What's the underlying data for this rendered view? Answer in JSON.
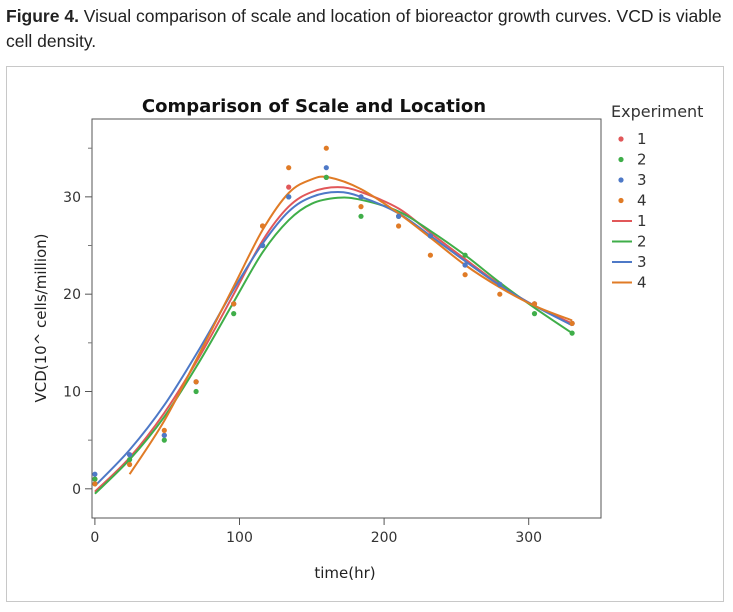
{
  "caption": {
    "label": "Figure 4.",
    "text": " Visual comparison of scale and location of bioreactor growth curves. VCD is viable cell density."
  },
  "chart_data": {
    "type": "scatter",
    "title": "Comparison of Scale and Location",
    "xlabel": "time(hr)",
    "ylabel": "VCD(10^ cells/million)",
    "xlim": [
      -2,
      350
    ],
    "ylim": [
      -3,
      38
    ],
    "xticks": [
      0,
      100,
      200,
      300
    ],
    "yticks": [
      0,
      10,
      20,
      30
    ],
    "legend": {
      "title": "Experiment",
      "position": "right",
      "point_entries": [
        "1",
        "2",
        "3",
        "4"
      ],
      "line_entries": [
        "1",
        "2",
        "3",
        "4"
      ]
    },
    "colors": {
      "1": "#e15759",
      "2": "#3fae49",
      "3": "#4e79c7",
      "4": "#e07b26"
    },
    "series": [
      {
        "name": "1",
        "points": [
          [
            0,
            1
          ],
          [
            24,
            3.5
          ],
          [
            48,
            5.5
          ],
          [
            70,
            11
          ],
          [
            96,
            19
          ],
          [
            116,
            27
          ],
          [
            134,
            31
          ],
          [
            160,
            32
          ],
          [
            184,
            30
          ],
          [
            210,
            28
          ],
          [
            232,
            26
          ],
          [
            256,
            23
          ],
          [
            280,
            21
          ],
          [
            304,
            19
          ],
          [
            330,
            17
          ]
        ],
        "fit": [
          [
            0,
            -0.3
          ],
          [
            24,
            3.2
          ],
          [
            48,
            7.8
          ],
          [
            72,
            13.5
          ],
          [
            96,
            20
          ],
          [
            116,
            25.5
          ],
          [
            134,
            29
          ],
          [
            150,
            30.5
          ],
          [
            168,
            31
          ],
          [
            184,
            30.5
          ],
          [
            210,
            28.8
          ],
          [
            232,
            26.3
          ],
          [
            256,
            23.6
          ],
          [
            280,
            21
          ],
          [
            304,
            18.8
          ],
          [
            330,
            17
          ]
        ]
      },
      {
        "name": "2",
        "points": [
          [
            0,
            1
          ],
          [
            24,
            3
          ],
          [
            48,
            5
          ],
          [
            70,
            10
          ],
          [
            96,
            18
          ],
          [
            116,
            25
          ],
          [
            134,
            30
          ],
          [
            160,
            32
          ],
          [
            184,
            28
          ],
          [
            210,
            28
          ],
          [
            232,
            26
          ],
          [
            256,
            24
          ],
          [
            280,
            21
          ],
          [
            304,
            18
          ],
          [
            330,
            16
          ]
        ],
        "fit": [
          [
            0,
            -0.5
          ],
          [
            24,
            3
          ],
          [
            48,
            7.4
          ],
          [
            72,
            13
          ],
          [
            96,
            19.2
          ],
          [
            116,
            24.3
          ],
          [
            134,
            27.6
          ],
          [
            150,
            29.3
          ],
          [
            168,
            29.9
          ],
          [
            184,
            29.7
          ],
          [
            210,
            28.5
          ],
          [
            232,
            26.5
          ],
          [
            256,
            24
          ],
          [
            280,
            21.2
          ],
          [
            304,
            18.6
          ],
          [
            330,
            16
          ]
        ]
      },
      {
        "name": "3",
        "points": [
          [
            0,
            1.5
          ],
          [
            24,
            3.5
          ],
          [
            48,
            5.5
          ],
          [
            70,
            11
          ],
          [
            96,
            19
          ],
          [
            116,
            25
          ],
          [
            134,
            30
          ],
          [
            160,
            33
          ],
          [
            184,
            30
          ],
          [
            210,
            28
          ],
          [
            232,
            26
          ],
          [
            256,
            23
          ],
          [
            280,
            21
          ],
          [
            304,
            19
          ],
          [
            330,
            17
          ]
        ],
        "fit": [
          [
            0,
            0.3
          ],
          [
            24,
            4
          ],
          [
            48,
            8.6
          ],
          [
            72,
            14.3
          ],
          [
            96,
            20.5
          ],
          [
            116,
            25.2
          ],
          [
            134,
            28.5
          ],
          [
            150,
            30
          ],
          [
            168,
            30.5
          ],
          [
            184,
            30
          ],
          [
            210,
            28.3
          ],
          [
            232,
            26
          ],
          [
            256,
            23.4
          ],
          [
            280,
            20.9
          ],
          [
            304,
            18.8
          ],
          [
            330,
            16.8
          ]
        ]
      },
      {
        "name": "4",
        "points": [
          [
            0,
            0.5
          ],
          [
            24,
            2.5
          ],
          [
            48,
            6
          ],
          [
            70,
            11
          ],
          [
            96,
            19
          ],
          [
            116,
            27
          ],
          [
            134,
            33
          ],
          [
            160,
            35
          ],
          [
            184,
            29
          ],
          [
            210,
            27
          ],
          [
            232,
            24
          ],
          [
            256,
            22
          ],
          [
            280,
            20
          ],
          [
            304,
            19
          ],
          [
            330,
            17
          ]
        ],
        "fit": [
          [
            24,
            1.5
          ],
          [
            48,
            7
          ],
          [
            72,
            13.8
          ],
          [
            96,
            20.8
          ],
          [
            116,
            26.6
          ],
          [
            134,
            30.4
          ],
          [
            150,
            31.8
          ],
          [
            162,
            32
          ],
          [
            184,
            30.8
          ],
          [
            210,
            28.3
          ],
          [
            232,
            25.8
          ],
          [
            256,
            23
          ],
          [
            280,
            20.7
          ],
          [
            304,
            18.8
          ],
          [
            330,
            17.3
          ]
        ]
      }
    ]
  }
}
